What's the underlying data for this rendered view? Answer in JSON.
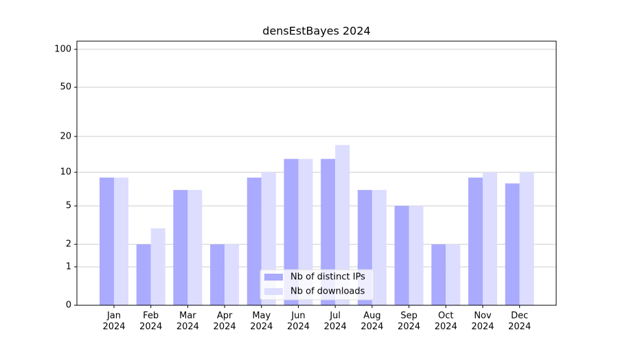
{
  "chart_data": {
    "type": "bar",
    "title": "densEstBayes 2024",
    "categories": [
      "Jan\n2024",
      "Feb\n2024",
      "Mar\n2024",
      "Apr\n2024",
      "May\n2024",
      "Jun\n2024",
      "Jul\n2024",
      "Aug\n2024",
      "Sep\n2024",
      "Oct\n2024",
      "Nov\n2024",
      "Dec\n2024"
    ],
    "series": [
      {
        "name": "Nb of distinct IPs",
        "color": "#aaaaff",
        "values": [
          9,
          2,
          7,
          2,
          9,
          13,
          13,
          7,
          5,
          2,
          9,
          8
        ]
      },
      {
        "name": "Nb of downloads",
        "color": "#ddddff",
        "values": [
          9,
          3,
          7,
          2,
          10,
          13,
          17,
          7,
          5,
          2,
          10,
          10
        ]
      }
    ],
    "ylim": [
      0,
      116
    ],
    "yticks": [
      0,
      1,
      2,
      5,
      10,
      20,
      50,
      100
    ],
    "yscale": "log1p",
    "grid": true,
    "legend": "lower center"
  }
}
